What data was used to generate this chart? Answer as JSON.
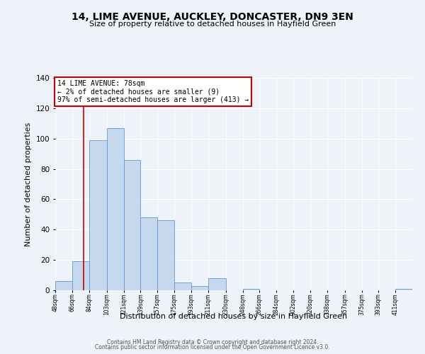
{
  "title": "14, LIME AVENUE, AUCKLEY, DONCASTER, DN9 3EN",
  "subtitle": "Size of property relative to detached houses in Hayfield Green",
  "xlabel": "Distribution of detached houses by size in Hayfield Green",
  "ylabel": "Number of detached properties",
  "bin_labels": [
    "48sqm",
    "66sqm",
    "84sqm",
    "103sqm",
    "121sqm",
    "139sqm",
    "157sqm",
    "175sqm",
    "193sqm",
    "211sqm",
    "230sqm",
    "248sqm",
    "266sqm",
    "284sqm",
    "302sqm",
    "320sqm",
    "338sqm",
    "357sqm",
    "375sqm",
    "393sqm",
    "411sqm"
  ],
  "bar_heights": [
    6,
    19,
    99,
    107,
    86,
    48,
    46,
    5,
    3,
    8,
    0,
    1,
    0,
    0,
    0,
    0,
    0,
    0,
    0,
    0,
    1
  ],
  "bar_color": "#c5d8ed",
  "bar_edge_color": "#5b9bd5",
  "ylim": [
    0,
    140
  ],
  "yticks": [
    0,
    20,
    40,
    60,
    80,
    100,
    120,
    140
  ],
  "property_line_x": 78,
  "bin_edges_sqm": [
    48,
    66,
    84,
    103,
    121,
    139,
    157,
    175,
    193,
    211,
    230,
    248,
    266,
    284,
    302,
    320,
    338,
    357,
    375,
    393,
    411,
    429
  ],
  "annotation_title": "14 LIME AVENUE: 78sqm",
  "annotation_line1": "← 2% of detached houses are smaller (9)",
  "annotation_line2": "97% of semi-detached houses are larger (413) →",
  "annotation_box_color": "#ffffff",
  "annotation_box_edge": "#cc0000",
  "vline_color": "#cc0000",
  "footer1": "Contains HM Land Registry data © Crown copyright and database right 2024.",
  "footer2": "Contains public sector information licensed under the Open Government Licence v3.0.",
  "background_color": "#eef2f9",
  "title_fontsize": 10,
  "subtitle_fontsize": 8,
  "ylabel_fontsize": 8,
  "xlabel_fontsize": 8
}
